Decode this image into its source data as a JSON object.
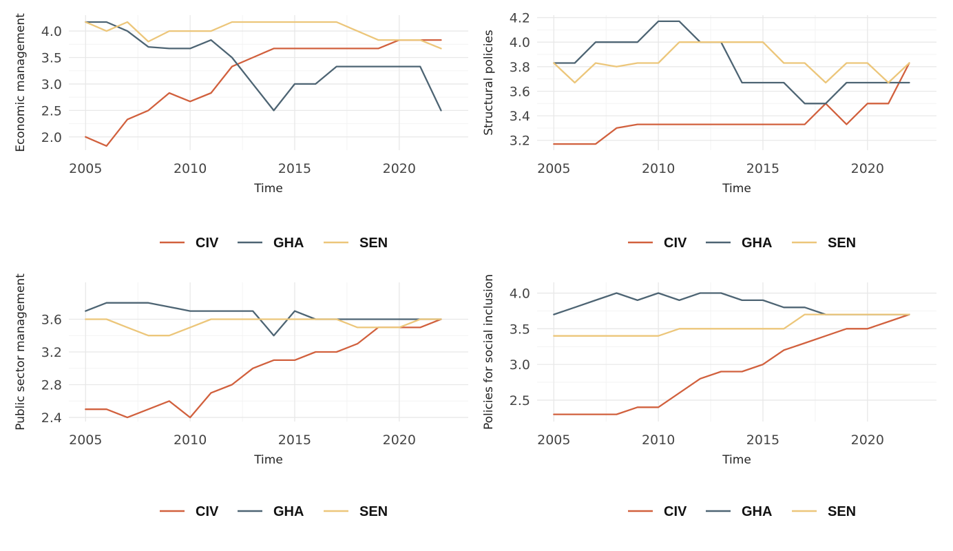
{
  "legend_labels": [
    "CIV",
    "GHA",
    "SEN"
  ],
  "series_colors": {
    "CIV": "#d1603d",
    "GHA": "#4d6473",
    "SEN": "#ecc67a"
  },
  "chart_data": [
    {
      "type": "line",
      "title": "",
      "xlabel": "Time",
      "ylabel": "Economic management",
      "x": [
        2005,
        2006,
        2007,
        2008,
        2009,
        2010,
        2011,
        2012,
        2013,
        2014,
        2015,
        2016,
        2017,
        2018,
        2019,
        2020,
        2021,
        2022
      ],
      "xlim": [
        2004.2,
        2023.3
      ],
      "ylim": [
        1.75,
        4.3
      ],
      "xticks": [
        2005,
        2010,
        2015,
        2020
      ],
      "yticks": [
        "2.0",
        "2.5",
        "3.0",
        "3.5",
        "4.0"
      ],
      "legend_position": "bottom",
      "series": [
        {
          "name": "CIV",
          "values": [
            2.0,
            1.83,
            2.33,
            2.5,
            2.83,
            2.67,
            2.83,
            3.33,
            3.5,
            3.67,
            3.67,
            3.67,
            3.67,
            3.67,
            3.67,
            3.83,
            3.83,
            3.83
          ]
        },
        {
          "name": "GHA",
          "values": [
            4.17,
            4.17,
            4.0,
            3.7,
            3.67,
            3.67,
            3.83,
            3.5,
            3.0,
            2.5,
            3.0,
            3.0,
            3.33,
            3.33,
            3.33,
            3.33,
            3.33,
            2.5
          ]
        },
        {
          "name": "SEN",
          "values": [
            4.17,
            4.0,
            4.17,
            3.8,
            4.0,
            4.0,
            4.0,
            4.17,
            4.17,
            4.17,
            4.17,
            4.17,
            4.17,
            4.0,
            3.83,
            3.83,
            3.83,
            3.67
          ]
        }
      ]
    },
    {
      "type": "line",
      "title": "",
      "xlabel": "Time",
      "ylabel": "Structural policies",
      "x": [
        2005,
        2006,
        2007,
        2008,
        2009,
        2010,
        2011,
        2012,
        2013,
        2014,
        2015,
        2016,
        2017,
        2018,
        2019,
        2020,
        2021,
        2022
      ],
      "xlim": [
        2004.2,
        2023.3
      ],
      "ylim": [
        3.12,
        4.22
      ],
      "xticks": [
        2005,
        2010,
        2015,
        2020
      ],
      "yticks": [
        "3.2",
        "3.4",
        "3.6",
        "3.8",
        "4.0",
        "4.2"
      ],
      "legend_position": "bottom",
      "series": [
        {
          "name": "CIV",
          "values": [
            3.17,
            3.17,
            3.17,
            3.3,
            3.33,
            3.33,
            3.33,
            3.33,
            3.33,
            3.33,
            3.33,
            3.33,
            3.33,
            3.5,
            3.33,
            3.5,
            3.5,
            3.83
          ]
        },
        {
          "name": "GHA",
          "values": [
            3.83,
            3.83,
            4.0,
            4.0,
            4.0,
            4.17,
            4.17,
            4.0,
            4.0,
            3.67,
            3.67,
            3.67,
            3.5,
            3.5,
            3.67,
            3.67,
            3.67,
            3.67
          ]
        },
        {
          "name": "SEN",
          "values": [
            3.83,
            3.67,
            3.83,
            3.8,
            3.83,
            3.83,
            4.0,
            4.0,
            4.0,
            4.0,
            4.0,
            3.83,
            3.83,
            3.67,
            3.83,
            3.83,
            3.67,
            3.83
          ]
        }
      ]
    },
    {
      "type": "line",
      "title": "",
      "xlabel": "Time",
      "ylabel": "Public sector management",
      "x": [
        2005,
        2006,
        2007,
        2008,
        2009,
        2010,
        2011,
        2012,
        2013,
        2014,
        2015,
        2016,
        2017,
        2018,
        2019,
        2020,
        2021,
        2022
      ],
      "xlim": [
        2004.2,
        2023.3
      ],
      "ylim": [
        2.35,
        4.05
      ],
      "xticks": [
        2005,
        2010,
        2015,
        2020
      ],
      "yticks": [
        "2.4",
        "2.8",
        "3.2",
        "3.6"
      ],
      "legend_position": "bottom",
      "series": [
        {
          "name": "CIV",
          "values": [
            2.5,
            2.5,
            2.4,
            2.5,
            2.6,
            2.4,
            2.7,
            2.8,
            3.0,
            3.1,
            3.1,
            3.2,
            3.2,
            3.3,
            3.5,
            3.5,
            3.5,
            3.6
          ]
        },
        {
          "name": "GHA",
          "values": [
            3.7,
            3.8,
            3.8,
            3.8,
            3.75,
            3.7,
            3.7,
            3.7,
            3.7,
            3.4,
            3.7,
            3.6,
            3.6,
            3.6,
            3.6,
            3.6,
            3.6,
            3.6
          ]
        },
        {
          "name": "SEN",
          "values": [
            3.6,
            3.6,
            3.5,
            3.4,
            3.4,
            3.5,
            3.6,
            3.6,
            3.6,
            3.6,
            3.6,
            3.6,
            3.6,
            3.5,
            3.5,
            3.5,
            3.6,
            3.6
          ]
        }
      ]
    },
    {
      "type": "line",
      "title": "",
      "xlabel": "Time",
      "ylabel": "Policies for social inclusion",
      "x": [
        2005,
        2006,
        2007,
        2008,
        2009,
        2010,
        2011,
        2012,
        2013,
        2014,
        2015,
        2016,
        2017,
        2018,
        2019,
        2020,
        2021,
        2022
      ],
      "xlim": [
        2004.2,
        2023.3
      ],
      "ylim": [
        2.2,
        4.15
      ],
      "xticks": [
        2005,
        2010,
        2015,
        2020
      ],
      "yticks": [
        "2.5",
        "3.0",
        "3.5",
        "4.0"
      ],
      "legend_position": "bottom",
      "series": [
        {
          "name": "CIV",
          "values": [
            2.3,
            2.3,
            2.3,
            2.3,
            2.4,
            2.4,
            2.6,
            2.8,
            2.9,
            2.9,
            3.0,
            3.2,
            3.3,
            3.4,
            3.5,
            3.5,
            3.6,
            3.7
          ]
        },
        {
          "name": "GHA",
          "values": [
            3.7,
            3.8,
            3.9,
            4.0,
            3.9,
            4.0,
            3.9,
            4.0,
            4.0,
            3.9,
            3.9,
            3.8,
            3.8,
            3.7,
            3.7,
            3.7,
            3.7,
            3.7
          ]
        },
        {
          "name": "SEN",
          "values": [
            3.4,
            3.4,
            3.4,
            3.4,
            3.4,
            3.4,
            3.5,
            3.5,
            3.5,
            3.5,
            3.5,
            3.5,
            3.7,
            3.7,
            3.7,
            3.7,
            3.7,
            3.7
          ]
        }
      ]
    }
  ]
}
